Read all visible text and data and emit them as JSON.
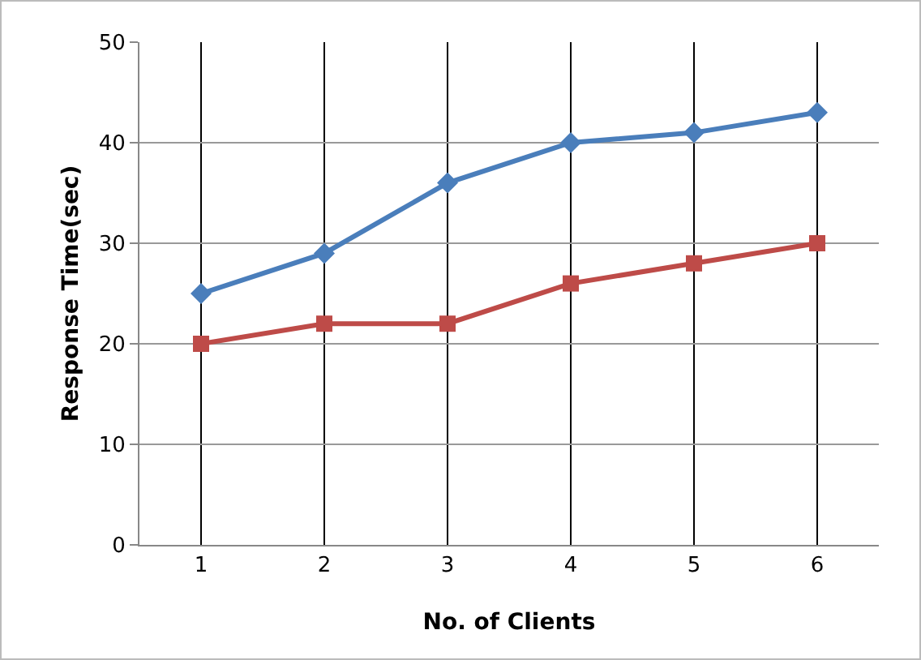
{
  "chart_data": {
    "type": "line",
    "xlabel": "No. of Clients",
    "ylabel": "Response Time(sec)",
    "categories": [
      "1",
      "2",
      "3",
      "4",
      "5",
      "6"
    ],
    "series": [
      {
        "color": "#4a7ebb",
        "marker": "diamond",
        "values": [
          25,
          29,
          36,
          40,
          41,
          43
        ]
      },
      {
        "color": "#be4b48",
        "marker": "square",
        "values": [
          20,
          22,
          22,
          26,
          28,
          30
        ]
      }
    ],
    "ylim": [
      0,
      50
    ],
    "yticks": [
      0,
      10,
      20,
      30,
      40,
      50
    ],
    "grid": true
  }
}
